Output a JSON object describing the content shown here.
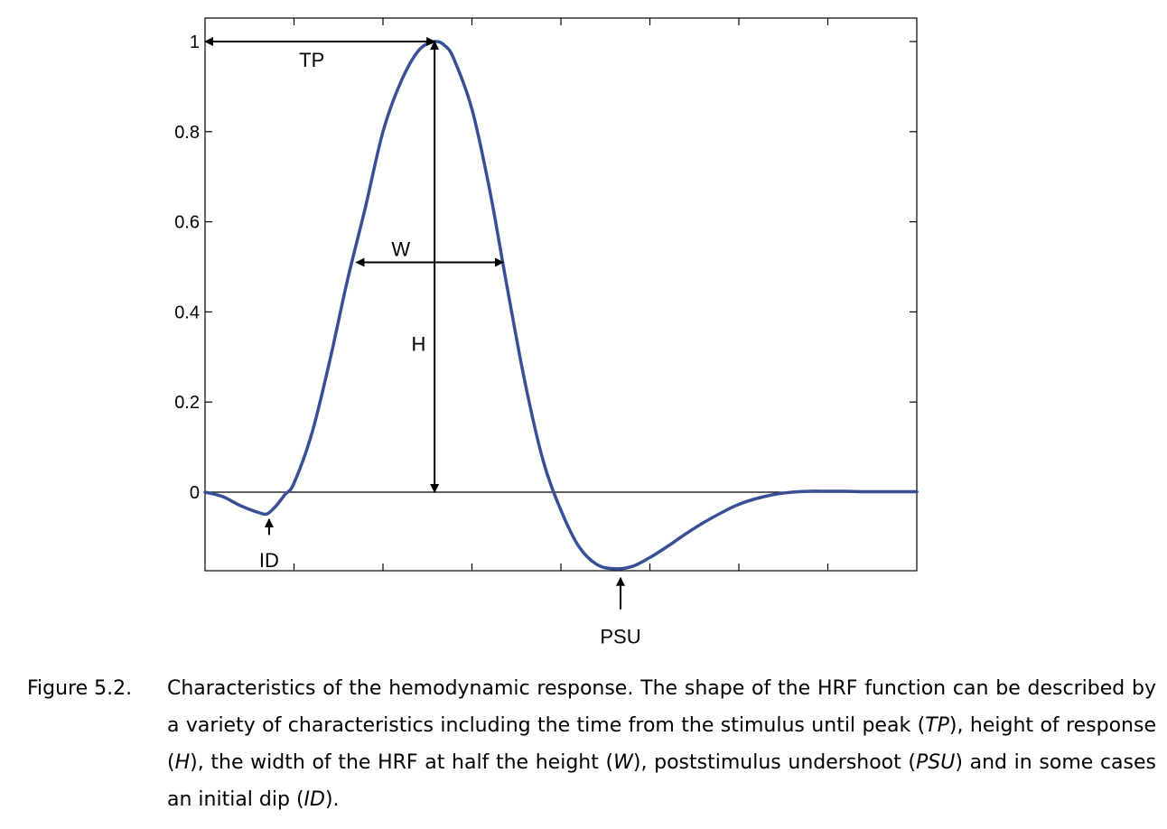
{
  "chart_data": {
    "type": "line",
    "title": "",
    "xlabel": "",
    "ylabel": "",
    "xlim": [
      0,
      8
    ],
    "ylim": [
      -0.175,
      1.0
    ],
    "yticks": [
      0,
      0.2,
      0.4,
      0.6,
      0.8,
      1
    ],
    "ytick_labels": [
      "0",
      "0.2",
      "0.4",
      "0.6",
      "0.8",
      "1"
    ],
    "xticks": [
      1,
      2,
      3,
      4,
      5,
      6,
      7
    ],
    "zero_line": true,
    "line_color": "#3a4e96",
    "series": [
      {
        "x": [
          0,
          0.2,
          0.4,
          0.6,
          0.7,
          0.8,
          0.9,
          1.0,
          1.2,
          1.4,
          1.6,
          1.8,
          2.0,
          2.2,
          2.4,
          2.58,
          2.7,
          2.8,
          3.0,
          3.2,
          3.4,
          3.6,
          3.8,
          4.0,
          4.2,
          4.4,
          4.6,
          4.8,
          5.0,
          5.2,
          5.4,
          5.6,
          5.8,
          6.0,
          6.2,
          6.4,
          6.6,
          6.8,
          7.0,
          7.2,
          7.4,
          7.6,
          7.8,
          8.0
        ],
        "y": [
          0,
          -0.01,
          -0.03,
          -0.045,
          -0.048,
          -0.03,
          -0.005,
          0.02,
          0.13,
          0.29,
          0.47,
          0.63,
          0.8,
          0.91,
          0.98,
          1.0,
          0.99,
          0.96,
          0.85,
          0.67,
          0.45,
          0.24,
          0.07,
          -0.04,
          -0.12,
          -0.16,
          -0.17,
          -0.165,
          -0.145,
          -0.12,
          -0.093,
          -0.068,
          -0.046,
          -0.027,
          -0.014,
          -0.005,
          0.0,
          0.002,
          0.002,
          0.002,
          0.001,
          0.001,
          0.001,
          0.001
        ]
      }
    ],
    "annotations": [
      {
        "label": "TP",
        "type": "horizontal-arrow",
        "from": [
          0,
          1.0
        ],
        "to": [
          2.58,
          1.0
        ],
        "text_at": [
          1.2,
          0.96
        ]
      },
      {
        "label": "H",
        "type": "vertical-arrow",
        "from": [
          2.58,
          0.0
        ],
        "to": [
          2.58,
          1.0
        ],
        "text_at": [
          2.4,
          0.33
        ]
      },
      {
        "label": "W",
        "type": "horizontal-arrow",
        "from": [
          1.7,
          0.51
        ],
        "to": [
          3.35,
          0.51
        ],
        "text_at": [
          2.2,
          0.54
        ]
      },
      {
        "label": "ID",
        "type": "up-arrow",
        "from": [
          0.72,
          -0.095
        ],
        "to": [
          0.72,
          -0.06
        ],
        "text_at": [
          0.72,
          -0.15
        ]
      },
      {
        "label": "PSU",
        "type": "up-arrow",
        "from": [
          4.67,
          -0.26
        ],
        "to": [
          4.67,
          -0.19
        ],
        "text_at": [
          4.67,
          -0.32
        ]
      }
    ]
  },
  "caption": {
    "label": "Figure 5.2.",
    "t1": "Characteristics of the hemodynamic response. The shape of the HRF function can be described by a variety of characteristics including the time from the stimulus until peak (",
    "e1": "TP",
    "t2": "), height of response (",
    "e2": "H",
    "t3": "), the width of the HRF at half the height (",
    "e3": "W",
    "t4": "), poststimulus undershoot (",
    "e4": "PSU",
    "t5": ") and in some cases an initial dip (",
    "e5": "ID",
    "t6": ")."
  }
}
